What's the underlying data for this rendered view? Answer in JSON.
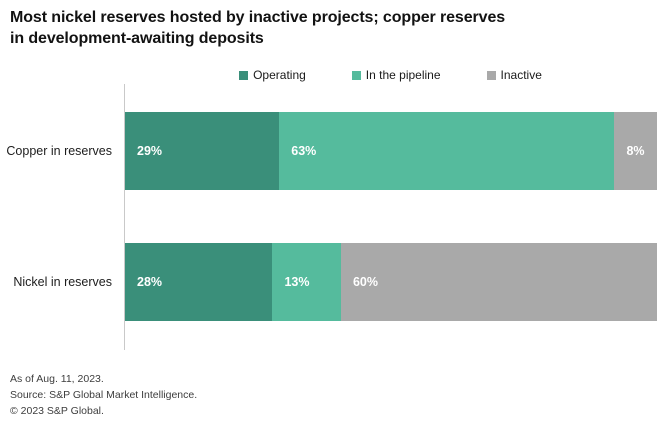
{
  "title_lines": [
    "Most nickel reserves hosted by inactive projects; copper reserves",
    "in development-awaiting deposits"
  ],
  "chart_data": {
    "type": "bar",
    "subtype": "horizontal-stacked",
    "title": "Most nickel reserves hosted by inactive projects; copper reserves in development-awaiting deposits",
    "categories": [
      "Copper in reserves",
      "Nickel in reserves"
    ],
    "series": [
      {
        "name": "Operating",
        "color": "#3A8F7A",
        "values": [
          29,
          28
        ],
        "labels": [
          "29%",
          "28%"
        ]
      },
      {
        "name": "In the pipeline",
        "color": "#55BB9D",
        "values": [
          63,
          13
        ],
        "labels": [
          "63%",
          "13%"
        ]
      },
      {
        "name": "Inactive",
        "color": "#A9A9A9",
        "values": [
          8,
          60
        ],
        "labels": [
          "8%",
          "60%"
        ]
      }
    ],
    "unit": "%",
    "xlim": [
      0,
      100
    ],
    "legend_position": "top-center",
    "value_label_style": "white bold, inside segment left",
    "grid": false,
    "axis_line_color": "#C9C9C9"
  },
  "footer": {
    "lines": [
      "As of Aug. 11, 2023.",
      "Source: S&P Global Market Intelligence.",
      "© 2023 S&P Global."
    ]
  },
  "colors": {
    "background": "#FFFFFF",
    "title_text": "#121212",
    "value_label": "#FFFFFF"
  }
}
